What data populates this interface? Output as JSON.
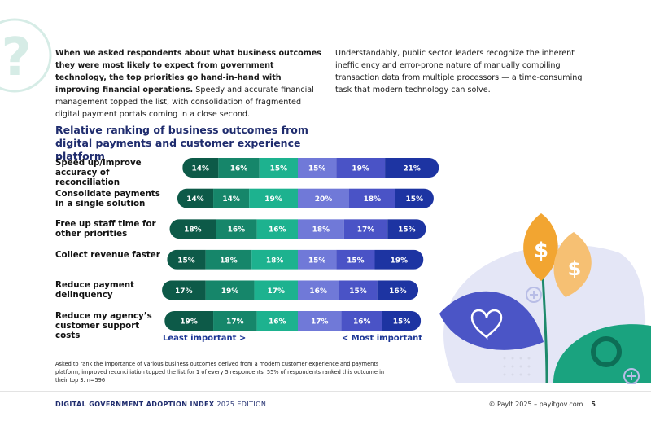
{
  "intro": {
    "bold": "When we asked respondents about what business outcomes they were most likely to expect from government technology, the top priorities go hand-in-hand with improving financial operations.",
    "text": "Speedy and accurate financial management topped the list, with consolidation of fragmented digital payment portals coming in a close second."
  },
  "intro_right": "Understandably, public sector leaders recognize the inherent inefficiency and error-prone nature of manually compiling transaction data from multiple processors — a time-consuming task that modern technology can solve.",
  "chart_data": {
    "type": "diverging_bar",
    "title": "Relative ranking of business outcomes from digital payments and customer experience platform",
    "categories": [
      "Speed up/improve accuracy of reconciliation",
      "Consolidate payments in a single solution",
      "Free up staff time for other priorities",
      "Collect revenue faster",
      "Reduce payment delinquency",
      "Reduce my agency’s customer support costs"
    ],
    "series": [
      {
        "color": "#0d5a48",
        "values": [
          14,
          14,
          18,
          15,
          17,
          19
        ],
        "value_labels": [
          "14%",
          "14%",
          "18%",
          "15%",
          "17%",
          "19%"
        ]
      },
      {
        "color": "#16866a",
        "values": [
          16,
          14,
          16,
          18,
          19,
          17
        ],
        "value_labels": [
          "16%",
          "14%",
          "16%",
          "18%",
          "19%",
          "17%"
        ]
      },
      {
        "color": "#1db28f",
        "values": [
          15,
          19,
          16,
          18,
          17,
          16
        ],
        "value_labels": [
          "15%",
          "19%",
          "16%",
          "18%",
          "17%",
          "16%"
        ]
      },
      {
        "color": "#7079d8",
        "values": [
          15,
          20,
          18,
          15,
          16,
          17
        ],
        "value_labels": [
          "15%",
          "20%",
          "18%",
          "15%",
          "16%",
          "17%"
        ]
      },
      {
        "color": "#4a53c6",
        "values": [
          19,
          18,
          17,
          15,
          15,
          16
        ],
        "value_labels": [
          "19%",
          "18%",
          "17%",
          "15%",
          "15%",
          "16%"
        ]
      },
      {
        "color": "#1d34a2",
        "values": [
          21,
          15,
          15,
          19,
          16,
          15
        ],
        "value_labels": [
          "21%",
          "15%",
          "15%",
          "19%",
          "16%",
          "15%"
        ]
      }
    ],
    "left_label": "Least important >",
    "right_label": "< Most important"
  },
  "footnote": "Asked to rank the importance of various business outcomes derived from a modern customer experience and payments platform, improved reconciliation topped the list for 1 of every 5 respondents. 55% of respondents ranked this outcome in their top 3.  n=596",
  "footer": {
    "index": "DIGITAL GOVERNMENT ADOPTION INDEX",
    "edition": "2025 EDITION",
    "copyright": "© PayIt 2025 – payitgov.com",
    "page": 5
  }
}
